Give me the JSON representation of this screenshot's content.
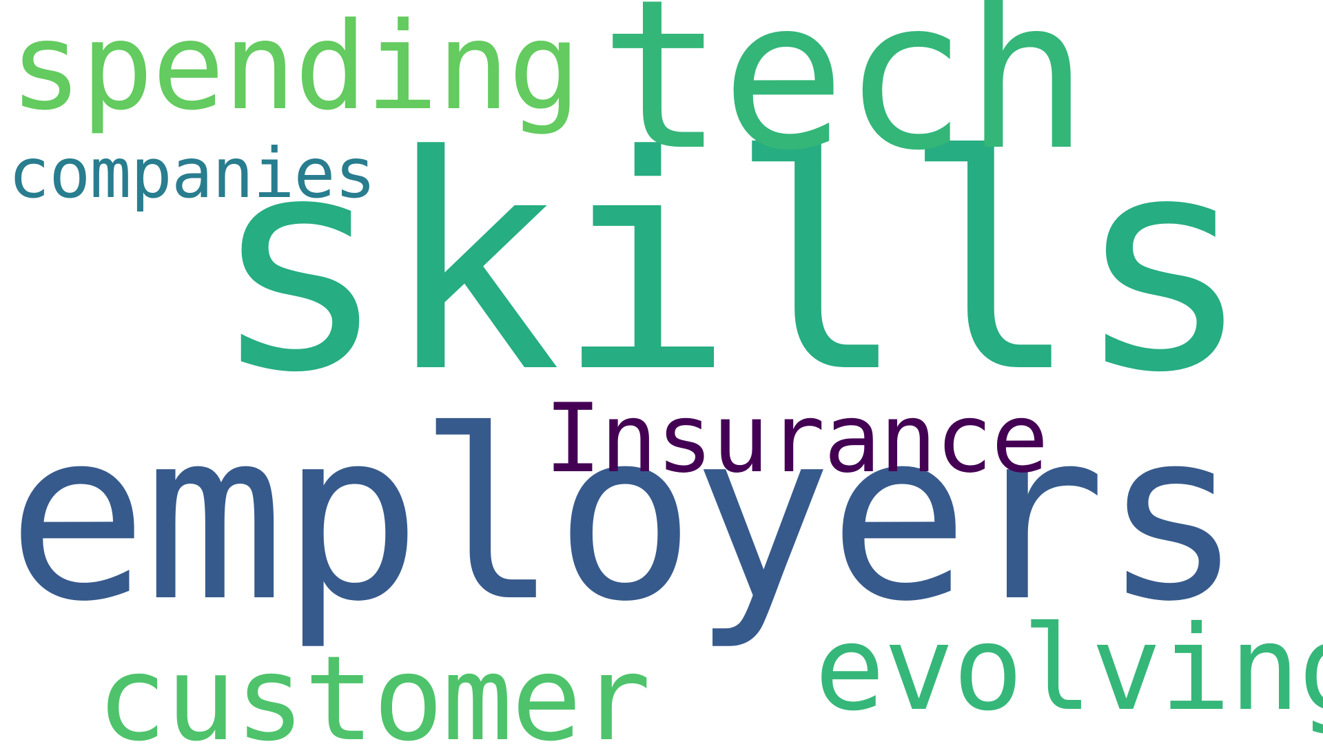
{
  "words": {
    "skills": {
      "text": "skills",
      "color": "#26ad81"
    },
    "employers": {
      "text": "employers",
      "color": "#375a8c"
    },
    "tech": {
      "text": "tech",
      "color": "#34b679"
    },
    "spending": {
      "text": "spending",
      "color": "#63cb5f"
    },
    "companies": {
      "text": "companies",
      "color": "#287d8e"
    },
    "insurance": {
      "text": "Insurance",
      "color": "#440154"
    },
    "evolving": {
      "text": "evolving",
      "color": "#35b779"
    },
    "customer": {
      "text": "customer",
      "color": "#4ec36b"
    }
  }
}
